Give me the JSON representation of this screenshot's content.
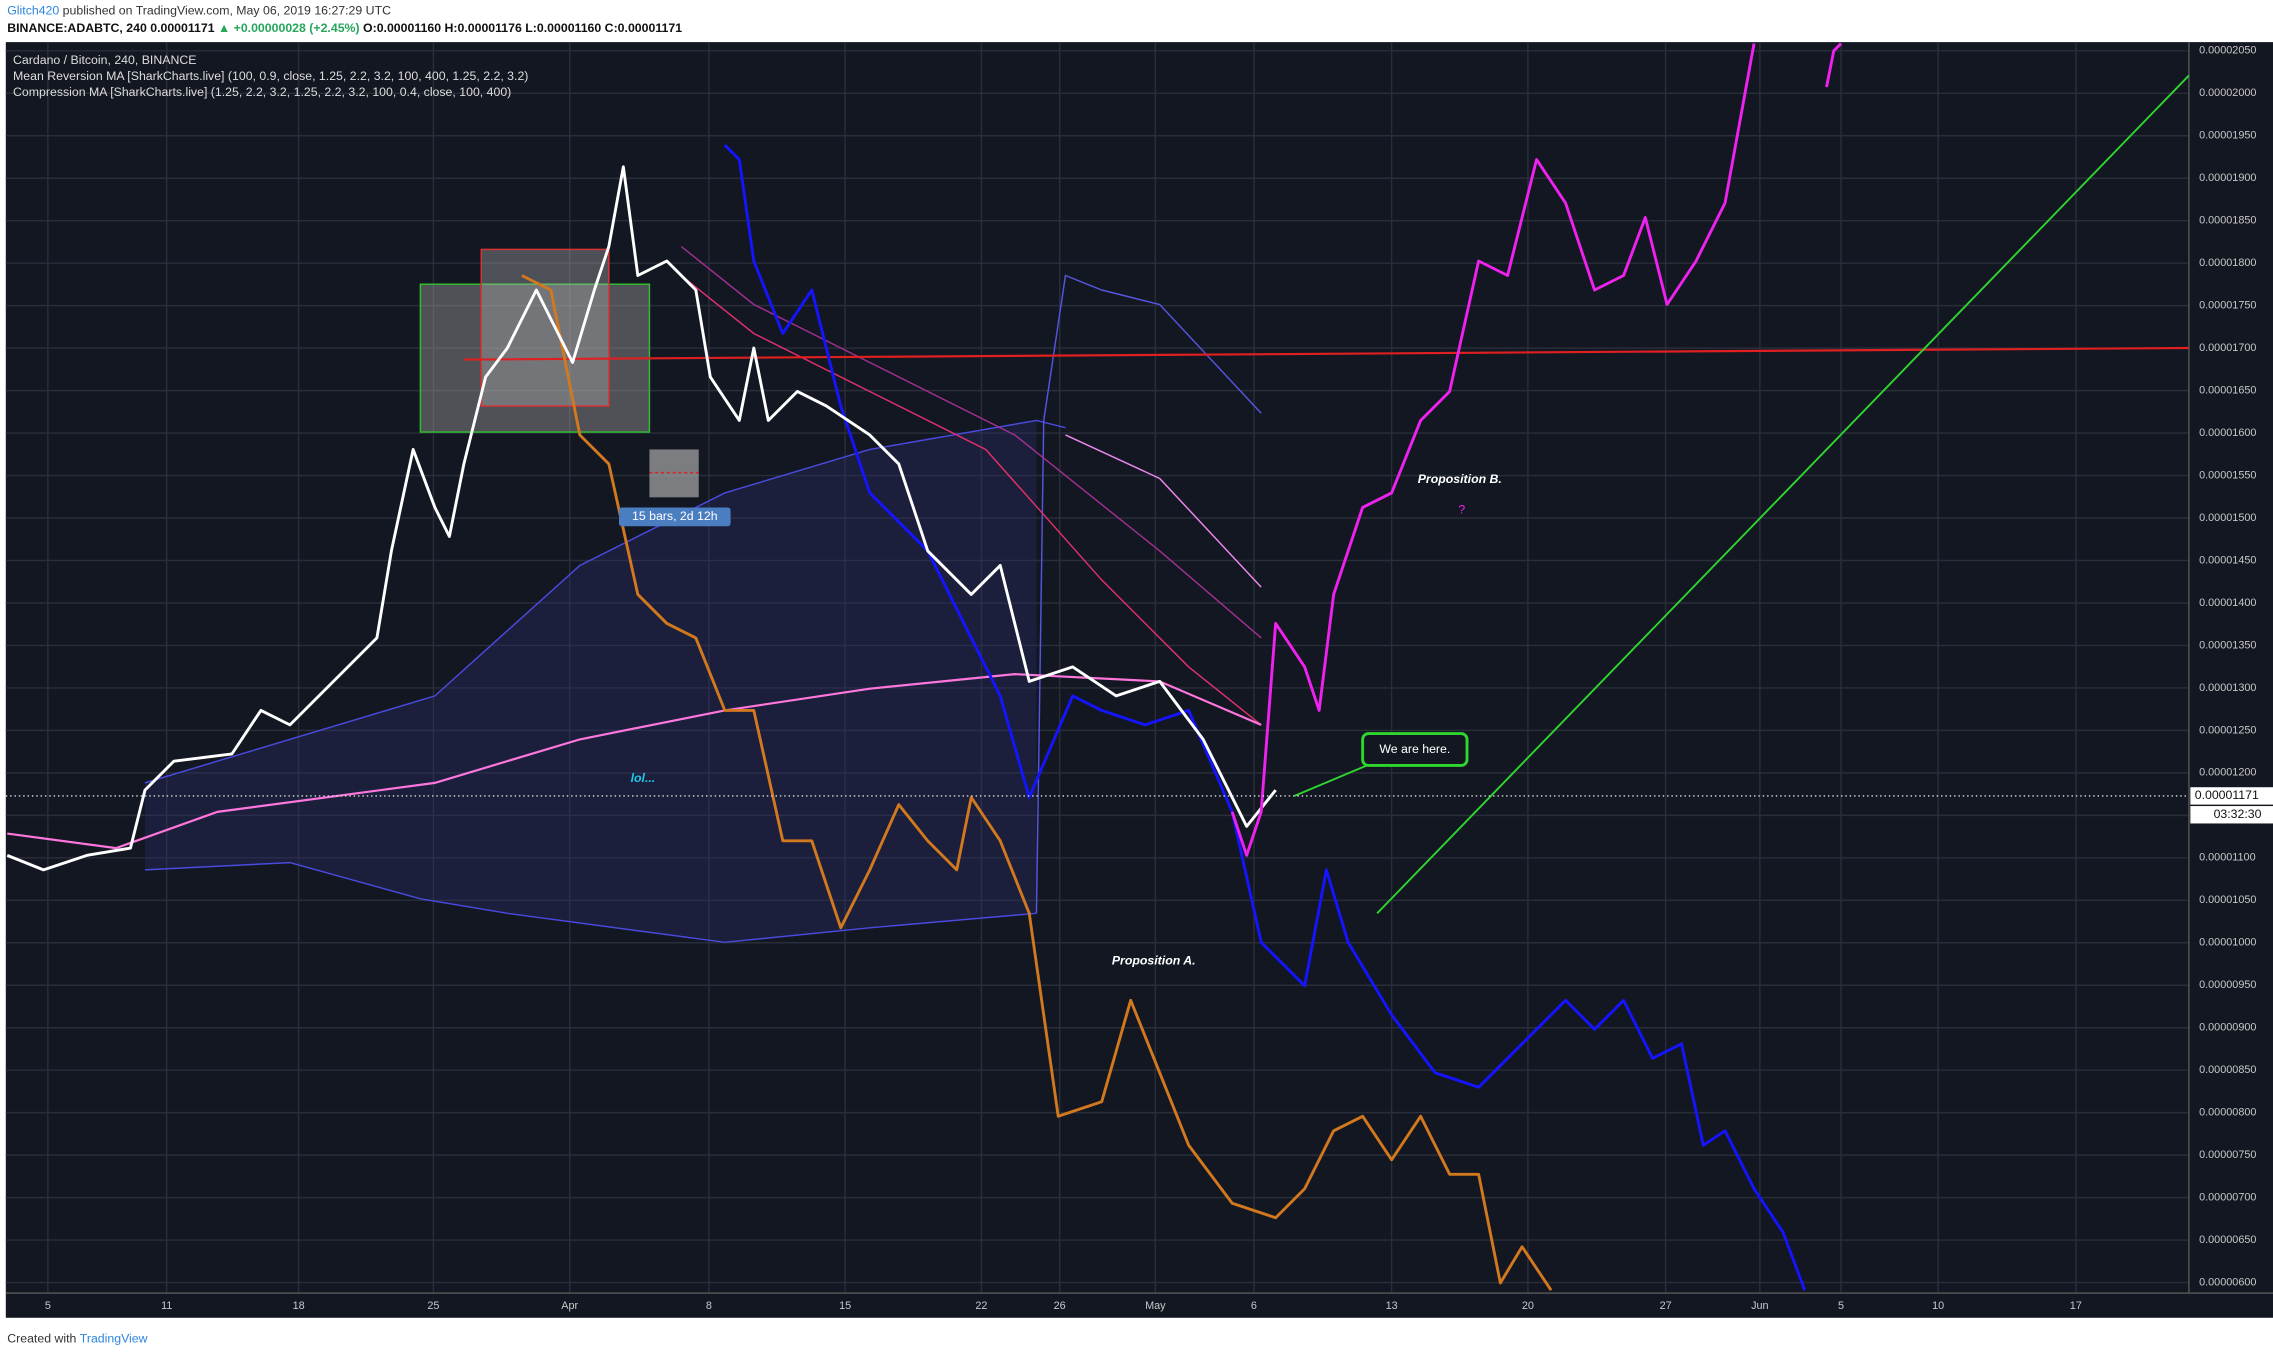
{
  "header": {
    "author": "Glitch420",
    "published": "published on TradingView.com, May 06, 2019 16:27:29 UTC",
    "symbol": "BINANCE:ADABTC, 240",
    "last": "0.00001171",
    "change": "▲ +0.00000028 (+2.45%)",
    "ohlc": "O:0.00001160 H:0.00001176 L:0.00001160 C:0.00001171"
  },
  "legend": [
    "Cardano / Bitcoin, 240, BINANCE",
    "Mean Reversion MA [SharkCharts.live] (100, 0.9, close, 1.25, 2.2, 3.2, 100, 400, 1.25, 2.2, 3.2)",
    "Compression MA [SharkCharts.live] (1.25, 2.2, 3.2, 1.25, 2.2, 3.2, 100, 0.4, close, 100, 400)"
  ],
  "price_axis": {
    "labels": [
      "0.00002050",
      "0.00002000",
      "0.00001950",
      "0.00001900",
      "0.00001850",
      "0.00001800",
      "0.00001750",
      "0.00001700",
      "0.00001650",
      "0.00001600",
      "0.00001550",
      "0.00001500",
      "0.00001450",
      "0.00001400",
      "0.00001350",
      "0.00001300",
      "0.00001250",
      "0.00001200",
      "0.00001150",
      "0.00001100",
      "0.00001050",
      "0.00001000",
      "0.00000950",
      "0.00000900",
      "0.00000850",
      "0.00000800",
      "0.00000750",
      "0.00000700",
      "0.00000650",
      "0.00000600"
    ],
    "current": "0.00001171",
    "countdown": "03:32:30"
  },
  "time_axis": {
    "labels": [
      "5",
      "11",
      "18",
      "25",
      "Apr",
      "8",
      "15",
      "22",
      "26",
      "May",
      "6",
      "13",
      "20",
      "27",
      "Jun",
      "5",
      "10",
      "17"
    ]
  },
  "annotations": {
    "lol": "lol...",
    "proposition_b": "Proposition B.",
    "question": "?",
    "proposition_a": "Proposition A.",
    "we_are_here": "We are here.",
    "measure": "15 bars, 2d 12h"
  },
  "footer": {
    "created": "Created with",
    "brand": "TradingView"
  }
}
